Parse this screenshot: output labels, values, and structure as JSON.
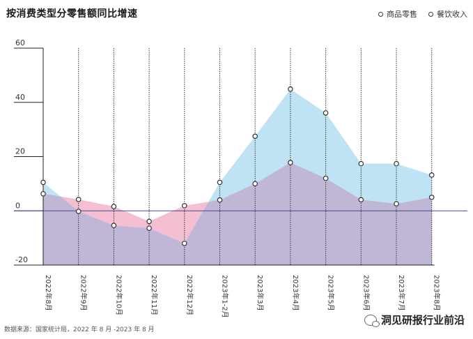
{
  "chart_data": {
    "type": "area",
    "title": "按消费类型分零售额同比增速",
    "categories": [
      "2022年8月",
      "2022年9月",
      "2022年10月",
      "2022年11月",
      "2022年12月",
      "2023年1-2月",
      "2023年3月",
      "2023年4月",
      "2023年5月",
      "2023年6月",
      "2023年7月",
      "2023年8月"
    ],
    "series": [
      {
        "name": "商品零售",
        "color": "#f4bed3",
        "values": [
          6.3,
          4.2,
          1.6,
          -3.9,
          1.9,
          4.0,
          10.0,
          17.8,
          12.0,
          4.1,
          2.6,
          5.0
        ]
      },
      {
        "name": "餐饮收入",
        "color": "#bfe3f4",
        "values": [
          10.5,
          -0.2,
          -5.4,
          -6.4,
          -12.0,
          10.5,
          27.5,
          44.9,
          36.1,
          17.4,
          17.4,
          13.2
        ]
      }
    ],
    "yticks": [
      60,
      40,
      20,
      0,
      -20
    ],
    "ylim": [
      -20,
      60
    ],
    "overlap_color": "#c0b7d7",
    "source": "数据来源：国家统计局，2022 年 8 月 -2023 年 8 月"
  },
  "watermark": "洞见研报行业前沿"
}
